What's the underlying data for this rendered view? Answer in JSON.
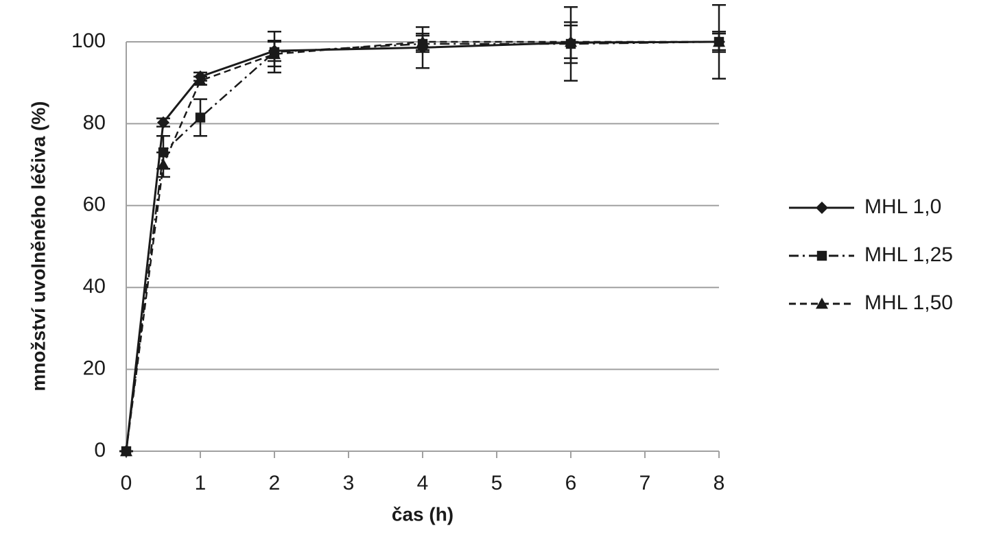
{
  "chart_data": {
    "type": "line",
    "x_label": "čas (h)",
    "y_label": "množství uvolněného léčiva (%)",
    "x": [
      0,
      0.5,
      1,
      2,
      4,
      6,
      8
    ],
    "series": [
      {
        "name": "MHL 1,0",
        "color": "#1a1a1a",
        "dash": "solid",
        "marker": "diamond",
        "values": [
          0,
          80.3,
          91.5,
          97.8,
          98.6,
          99.8,
          100
        ],
        "errors": [
          0,
          1,
          1,
          2.5,
          5,
          5,
          2.5
        ]
      },
      {
        "name": "MHL 1,25",
        "color": "#1a1a1a",
        "dash": "dashdot",
        "marker": "square",
        "values": [
          0,
          73,
          81.5,
          97.5,
          99.5,
          99.5,
          100
        ],
        "errors": [
          0,
          4,
          4.5,
          5,
          2,
          9,
          9
        ]
      },
      {
        "name": "MHL 1,50",
        "color": "#1a1a1a",
        "dash": "dash",
        "marker": "triangle",
        "values": [
          0,
          70,
          90.5,
          97,
          100,
          100,
          100
        ],
        "errors": [
          0,
          3,
          1,
          3,
          2,
          4,
          2
        ]
      }
    ],
    "xlim": [
      0,
      8
    ],
    "xticks": [
      0,
      1,
      2,
      3,
      4,
      5,
      6,
      7,
      8
    ],
    "ylim": [
      0,
      100
    ],
    "yticks": [
      0,
      20,
      40,
      60,
      80,
      100
    ],
    "grid": true,
    "legend": "right"
  }
}
